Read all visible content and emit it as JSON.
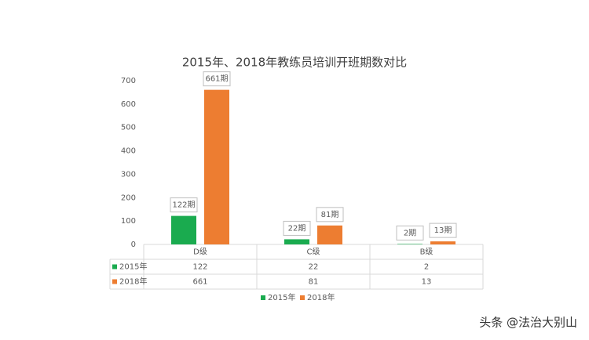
{
  "chart_data": {
    "type": "bar",
    "title": "2015年、2018年教练员培训开班期数对比",
    "categories": [
      "D级",
      "C级",
      "B级"
    ],
    "series": [
      {
        "name": "2015年",
        "color": "#1aab4f",
        "values": [
          122,
          22,
          2
        ],
        "value_labels": [
          "122期",
          "22期",
          "2期"
        ]
      },
      {
        "name": "2018年",
        "color": "#ed7d31",
        "values": [
          661,
          81,
          13
        ],
        "value_labels": [
          "661期",
          "81期",
          "13期"
        ]
      }
    ],
    "ylim": [
      0,
      700
    ],
    "yticks": [
      0,
      100,
      200,
      300,
      400,
      500,
      600,
      700
    ],
    "grid": false
  },
  "watermark": "头条 @法治大别山"
}
